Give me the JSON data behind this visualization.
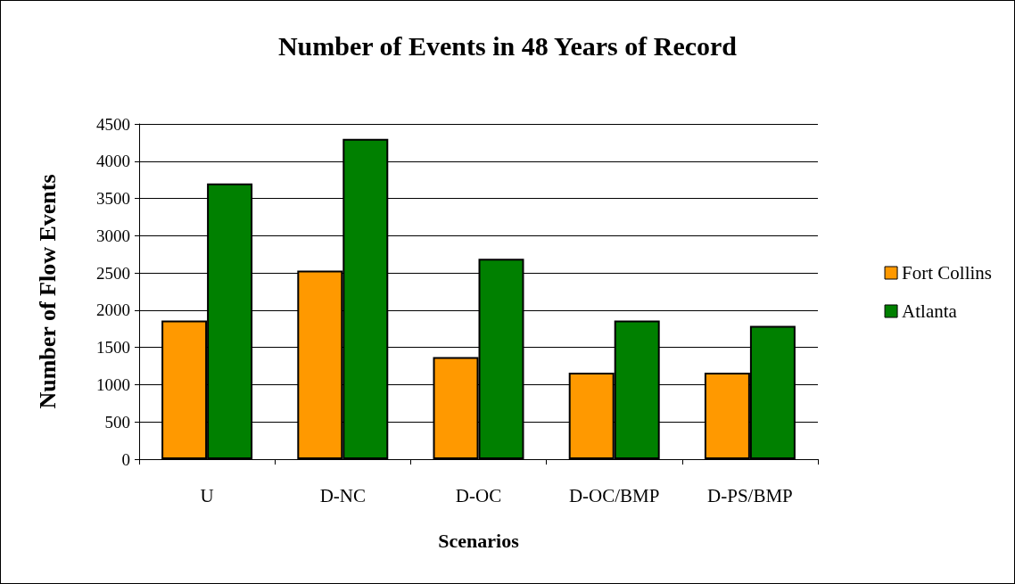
{
  "chart_data": {
    "type": "bar",
    "title": "Number of Events in 48 Years of Record",
    "xlabel": "Scenarios",
    "ylabel": "Number of Flow Events",
    "categories": [
      "U",
      "D-NC",
      "D-OC",
      "D-OC/BMP",
      "D-PS/BMP"
    ],
    "series": [
      {
        "name": "Fort Collins",
        "color": "#ff9900",
        "values": [
          1860,
          2530,
          1370,
          1160,
          1160
        ]
      },
      {
        "name": "Atlanta",
        "color": "#008000",
        "values": [
          3700,
          4300,
          2690,
          1860,
          1790
        ]
      }
    ],
    "ylim": [
      0,
      4500
    ],
    "yticks": [
      0,
      500,
      1000,
      1500,
      2000,
      2500,
      3000,
      3500,
      4000,
      4500
    ],
    "grid": "y",
    "legend": "right"
  }
}
